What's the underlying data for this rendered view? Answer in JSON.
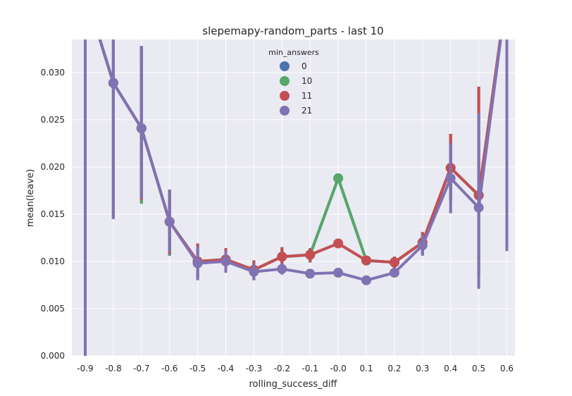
{
  "chart_data": {
    "type": "line",
    "title": "slepemapy-random_parts - last 10",
    "xlabel": "rolling_success_diff",
    "ylabel": "mean(leave)",
    "categories": [
      "-0.9",
      "-0.8",
      "-0.7",
      "-0.6",
      "-0.5",
      "-0.4",
      "-0.3",
      "-0.2",
      "-0.1",
      "-0.0",
      "0.1",
      "0.2",
      "0.3",
      "0.4",
      "0.5",
      "0.6"
    ],
    "ylim": [
      0,
      0.0335
    ],
    "yticks": [
      "0.000",
      "0.005",
      "0.010",
      "0.015",
      "0.020",
      "0.025",
      "0.030"
    ],
    "grid": true,
    "legend": {
      "title": "min_answers",
      "placement": "top-center"
    },
    "series": [
      {
        "name": "0",
        "color": "#4c72b0",
        "values": [
          0.0385,
          0.0289,
          0.0241,
          0.0142,
          0.01,
          0.0102,
          0.0091,
          0.0105,
          0.0107,
          0.0188,
          0.0101,
          0.0099,
          0.012,
          0.0199,
          0.017,
          0.0385
        ],
        "ci": [
          [
            0.0,
            0.05
          ],
          [
            0.0145,
            0.05
          ],
          [
            0.0162,
            0.0328
          ],
          [
            0.0106,
            0.0176
          ],
          [
            0.0082,
            0.0119
          ],
          [
            0.009,
            0.0114
          ],
          [
            0.0081,
            0.0101
          ],
          [
            0.0091,
            0.0115
          ],
          [
            0.0099,
            0.0114
          ],
          [
            0.0184,
            0.0192
          ],
          [
            0.0097,
            0.0105
          ],
          [
            0.0093,
            0.0105
          ],
          [
            0.0108,
            0.0131
          ],
          [
            0.0164,
            0.0235
          ],
          [
            0.0086,
            0.0285
          ],
          [
            0.0115,
            0.05
          ]
        ]
      },
      {
        "name": "10",
        "color": "#55a868",
        "values": [
          0.0385,
          0.0289,
          0.0241,
          0.0142,
          0.01,
          0.0102,
          0.0091,
          0.0105,
          0.0107,
          0.0188,
          0.0101,
          0.0099,
          0.012,
          0.0199,
          0.017,
          0.0385
        ],
        "ci": [
          [
            0.0,
            0.05
          ],
          [
            0.0145,
            0.05
          ],
          [
            0.0161,
            0.0328
          ],
          [
            0.0107,
            0.0176
          ],
          [
            0.0082,
            0.0119
          ],
          [
            0.009,
            0.0114
          ],
          [
            0.0081,
            0.0101
          ],
          [
            0.0091,
            0.0115
          ],
          [
            0.0099,
            0.0114
          ],
          [
            0.0184,
            0.0192
          ],
          [
            0.0097,
            0.0105
          ],
          [
            0.0093,
            0.0105
          ],
          [
            0.0108,
            0.0131
          ],
          [
            0.0164,
            0.0235
          ],
          [
            0.0086,
            0.0285
          ],
          [
            0.0115,
            0.05
          ]
        ]
      },
      {
        "name": "11",
        "color": "#c44e52",
        "values": [
          0.0385,
          0.0289,
          0.0241,
          0.0142,
          0.01,
          0.0102,
          0.0091,
          0.0105,
          0.0107,
          0.0119,
          0.0101,
          0.0099,
          0.012,
          0.0199,
          0.017,
          0.0385
        ],
        "ci": [
          [
            0.0,
            0.05
          ],
          [
            0.0145,
            0.05
          ],
          [
            0.0165,
            0.0328
          ],
          [
            0.0108,
            0.0176
          ],
          [
            0.0082,
            0.0119
          ],
          [
            0.009,
            0.0114
          ],
          [
            0.0081,
            0.0101
          ],
          [
            0.0091,
            0.0115
          ],
          [
            0.0099,
            0.0114
          ],
          [
            0.0116,
            0.0122
          ],
          [
            0.0097,
            0.0105
          ],
          [
            0.0093,
            0.0105
          ],
          [
            0.0108,
            0.0131
          ],
          [
            0.0164,
            0.0235
          ],
          [
            0.0086,
            0.0285
          ],
          [
            0.0115,
            0.05
          ]
        ]
      },
      {
        "name": "21",
        "color": "#8172b2",
        "values": [
          0.0385,
          0.0289,
          0.0241,
          0.0142,
          0.0098,
          0.01,
          0.0089,
          0.0092,
          0.0087,
          0.0088,
          0.008,
          0.0088,
          0.0117,
          0.0188,
          0.0157,
          0.0385
        ],
        "ci": [
          [
            0.0,
            0.05
          ],
          [
            0.0145,
            0.05
          ],
          [
            0.0166,
            0.0328
          ],
          [
            0.011,
            0.0176
          ],
          [
            0.008,
            0.0116
          ],
          [
            0.0088,
            0.0111
          ],
          [
            0.008,
            0.0098
          ],
          [
            0.0086,
            0.0098
          ],
          [
            0.0084,
            0.0091
          ],
          [
            0.0085,
            0.0091
          ],
          [
            0.0077,
            0.0084
          ],
          [
            0.0083,
            0.0093
          ],
          [
            0.0106,
            0.0128
          ],
          [
            0.0151,
            0.0225
          ],
          [
            0.0071,
            0.0257
          ],
          [
            0.0111,
            0.05
          ]
        ]
      }
    ]
  }
}
